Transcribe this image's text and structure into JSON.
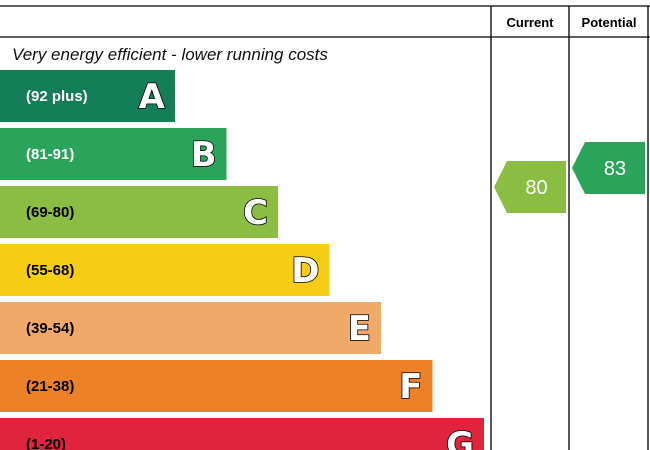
{
  "chart_data": {
    "type": "bar",
    "top_caption": "Very energy efficient - lower running costs",
    "column_headers": {
      "current": "Current",
      "potential": "Potential"
    },
    "bands": [
      {
        "letter": "A",
        "range": "(92 plus)",
        "min": 92,
        "max": null,
        "color": "#137d57",
        "text_color": "#ffffff"
      },
      {
        "letter": "B",
        "range": "(81-91)",
        "min": 81,
        "max": 91,
        "color": "#2aa45a",
        "text_color": "#ffffff"
      },
      {
        "letter": "C",
        "range": "(69-80)",
        "min": 69,
        "max": 80,
        "color": "#8cbd43",
        "text_color": "#000000"
      },
      {
        "letter": "D",
        "range": "(55-68)",
        "min": 55,
        "max": 68,
        "color": "#f7cd14",
        "text_color": "#000000"
      },
      {
        "letter": "E",
        "range": "(39-54)",
        "min": 39,
        "max": 54,
        "color": "#f1a96a",
        "text_color": "#000000"
      },
      {
        "letter": "F",
        "range": "(21-38)",
        "min": 21,
        "max": 38,
        "color": "#ed8128",
        "text_color": "#000000"
      },
      {
        "letter": "G",
        "range": "(1-20)",
        "min": 1,
        "max": 20,
        "color": "#e1243d",
        "text_color": "#000000"
      }
    ],
    "current": {
      "value": 80,
      "band": "C",
      "color": "#8cbd43"
    },
    "potential": {
      "value": 83,
      "band": "B",
      "color": "#2aa45a"
    }
  }
}
